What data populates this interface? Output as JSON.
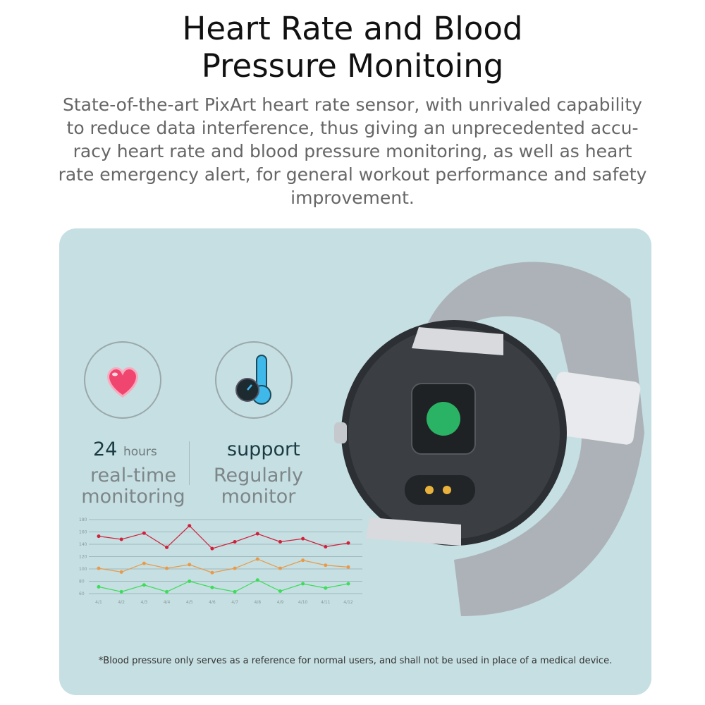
{
  "header": {
    "title_line1": "Heart Rate and Blood",
    "title_line2": "Pressure Monitoing",
    "description": "State-of-the-art PixArt heart rate sensor, with unrivaled capability to reduce data interference, thus giving an unprecedented accu-racy heart rate and blood pressure monitoring, as well as heart rate emergency alert, for general workout performance and safety improvement."
  },
  "features": [
    {
      "icon": "heart-icon",
      "number": "24",
      "unit": "hours",
      "line1": "real-time",
      "line2": "monitoring"
    },
    {
      "icon": "thermometer-clock-icon",
      "number": "support",
      "line1": "Regularly",
      "line2": "monitor"
    }
  ],
  "footnote": "*Blood pressure only serves as a reference for normal users, and shall not be used in place of a medical device.",
  "chart_data": {
    "type": "line",
    "categories": [
      "4/1",
      "4/2",
      "4/3",
      "4/4",
      "4/5",
      "4/6",
      "4/7",
      "4/8",
      "4/9",
      "4/10",
      "4/11",
      "4/12"
    ],
    "yticks": [
      60,
      80,
      100,
      120,
      140,
      160,
      180
    ],
    "ylim": [
      60,
      180
    ],
    "grid": true,
    "series": [
      {
        "color": "#d0203a",
        "values": [
          153,
          148,
          158,
          135,
          170,
          133,
          144,
          157,
          144,
          149,
          136,
          142
        ]
      },
      {
        "color": "#e89a4a",
        "values": [
          101,
          95,
          109,
          101,
          107,
          94,
          101,
          116,
          101,
          114,
          106,
          103
        ]
      },
      {
        "color": "#3ddc5a",
        "values": [
          71,
          63,
          74,
          63,
          80,
          70,
          63,
          82,
          64,
          76,
          69,
          76
        ]
      }
    ]
  }
}
